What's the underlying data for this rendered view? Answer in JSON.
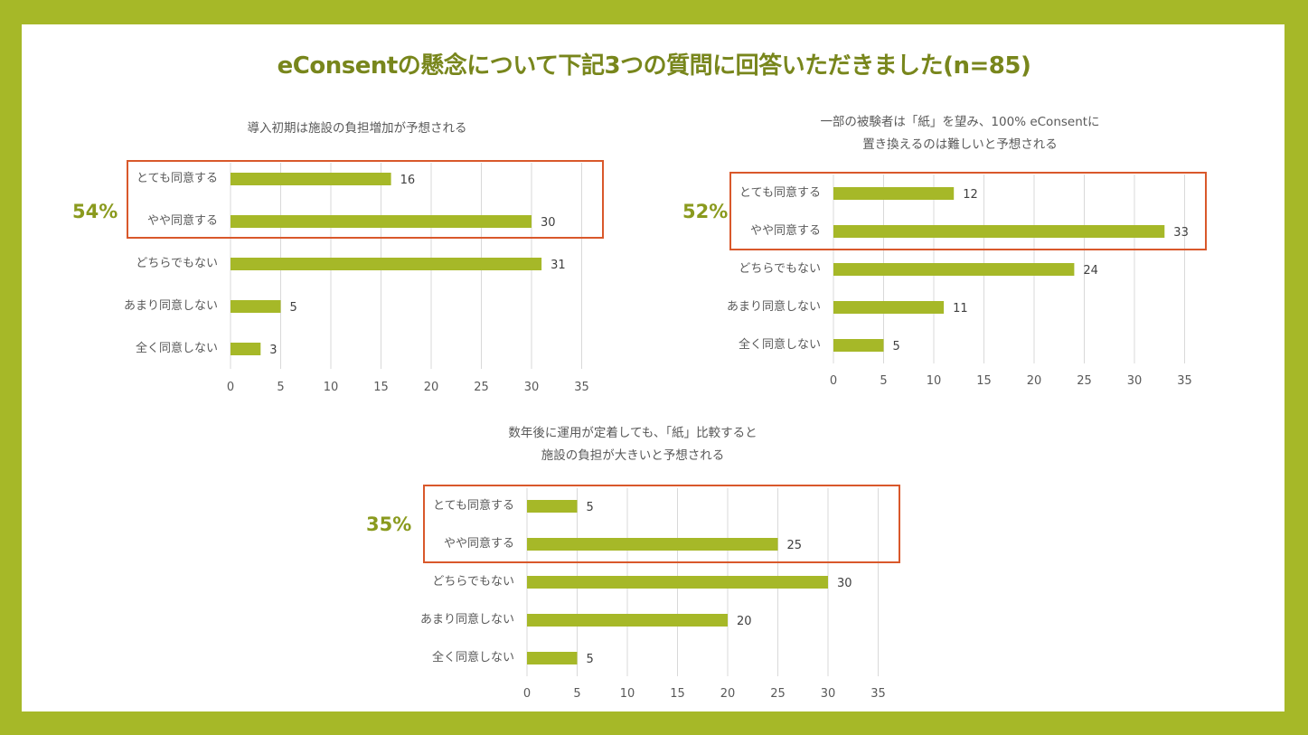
{
  "title": "eConsentの懸念について下記3つの質問に回答いただきました(n=85)",
  "colors": {
    "frame": "#a6b828",
    "bar": "#a6b828",
    "title": "#78861c",
    "highlight": "#d9582b",
    "grid": "#d9d9d9",
    "text": "#595959"
  },
  "chart_data": [
    {
      "type": "bar",
      "orientation": "horizontal",
      "title_lines": [
        "導入初期は施設の負担増加が予想される"
      ],
      "categories": [
        "とても同意する",
        "やや同意する",
        "どちらでもない",
        "あまり同意しない",
        "全く同意しない"
      ],
      "values": [
        16,
        30,
        31,
        5,
        3
      ],
      "xlim": [
        0,
        35
      ],
      "xticks": [
        0,
        5,
        10,
        15,
        20,
        25,
        30,
        35
      ],
      "grid": true,
      "highlight_categories": [
        "とても同意する",
        "やや同意する"
      ],
      "highlight_label": "54%"
    },
    {
      "type": "bar",
      "orientation": "horizontal",
      "title_lines": [
        "一部の被験者は「紙」を望み、100% eConsentに",
        "置き換えるのは難しいと予想される"
      ],
      "categories": [
        "とても同意する",
        "やや同意する",
        "どちらでもない",
        "あまり同意しない",
        "全く同意しない"
      ],
      "values": [
        12,
        33,
        24,
        11,
        5
      ],
      "xlim": [
        0,
        35
      ],
      "xticks": [
        0,
        5,
        10,
        15,
        20,
        25,
        30,
        35
      ],
      "grid": true,
      "highlight_categories": [
        "とても同意する",
        "やや同意する"
      ],
      "highlight_label": "52%"
    },
    {
      "type": "bar",
      "orientation": "horizontal",
      "title_lines": [
        "数年後に運用が定着しても、「紙」比較すると",
        "施設の負担が大きいと予想される"
      ],
      "categories": [
        "とても同意する",
        "やや同意する",
        "どちらでもない",
        "あまり同意しない",
        "全く同意しない"
      ],
      "values": [
        5,
        25,
        30,
        20,
        5
      ],
      "xlim": [
        0,
        35
      ],
      "xticks": [
        0,
        5,
        10,
        15,
        20,
        25,
        30,
        35
      ],
      "grid": true,
      "highlight_categories": [
        "とても同意する",
        "やや同意する"
      ],
      "highlight_label": "35%"
    }
  ]
}
